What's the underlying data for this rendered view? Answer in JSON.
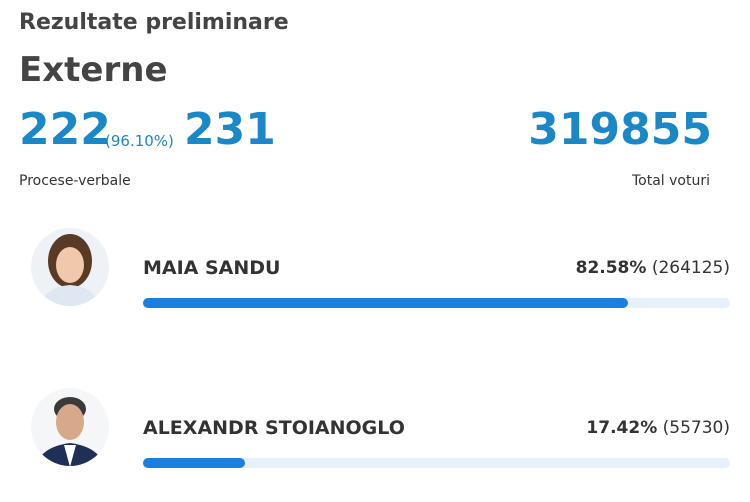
{
  "header": {
    "title": "Rezultate preliminare",
    "subtitle": "Externe"
  },
  "summary": {
    "counted": "222",
    "counted_percent": "(96.10%)",
    "total": "231",
    "counted_label": "Procese-verbale",
    "total_votes": "319855",
    "total_votes_label": "Total voturi"
  },
  "candidates": [
    {
      "name": "MAIA SANDU",
      "percent": 82.58,
      "percent_label": "82.58%",
      "votes_label": "(264125)"
    },
    {
      "name": "ALEXANDR STOIANOGLO",
      "percent": 17.42,
      "percent_label": "17.42%",
      "votes_label": "(55730)"
    }
  ]
}
